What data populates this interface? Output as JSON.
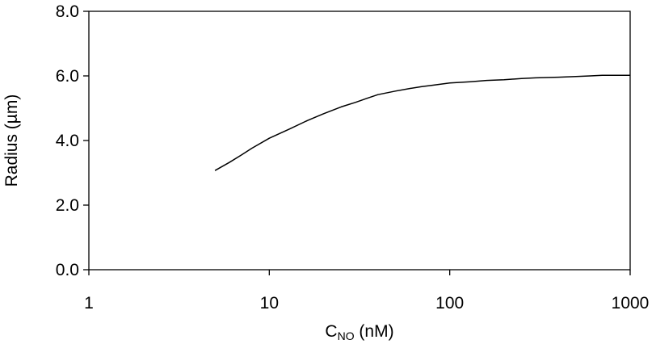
{
  "chart_data": {
    "type": "line",
    "title": "",
    "xlabel": {
      "main": "C",
      "subscript": "NO",
      "rest": " (nM)"
    },
    "ylabel": "Radius (µm)",
    "xscale": "log",
    "xlim": [
      1,
      1000
    ],
    "ylim": [
      0,
      8
    ],
    "xticks": [
      1,
      10,
      100,
      1000
    ],
    "xtick_labels": [
      "1",
      "10",
      "100",
      "1000"
    ],
    "yticks": [
      0,
      2,
      4,
      6,
      8
    ],
    "ytick_labels": [
      "0.0",
      "2.0",
      "4.0",
      "6.0",
      "8.0"
    ],
    "grid": false,
    "legend": "none",
    "line_color": "#000000",
    "series": [
      {
        "x": [
          5,
          6,
          7,
          8,
          10,
          13,
          16,
          20,
          25,
          30,
          35,
          40,
          50,
          60,
          70,
          80,
          100,
          130,
          160,
          200,
          250,
          300,
          400,
          500,
          600,
          700,
          800,
          1000
        ],
        "y": [
          3.07,
          3.32,
          3.55,
          3.76,
          4.07,
          4.36,
          4.6,
          4.83,
          5.04,
          5.18,
          5.31,
          5.42,
          5.53,
          5.61,
          5.67,
          5.71,
          5.78,
          5.82,
          5.86,
          5.88,
          5.92,
          5.94,
          5.96,
          5.98,
          6.0,
          6.02,
          6.02,
          6.02
        ]
      }
    ]
  }
}
